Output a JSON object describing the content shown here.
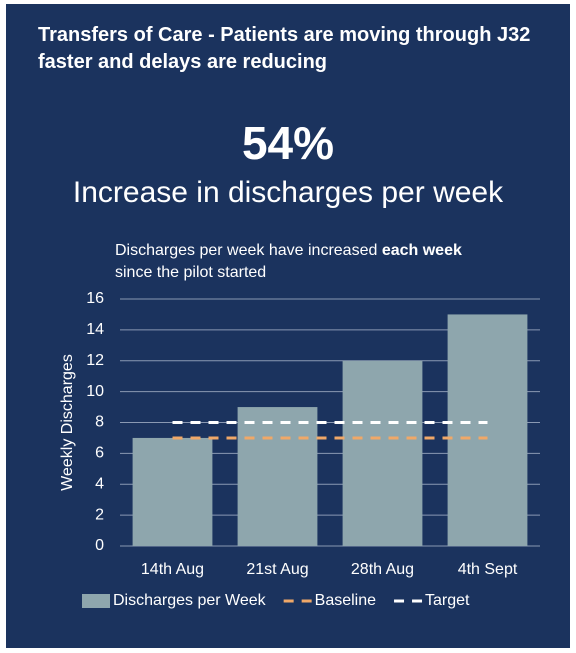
{
  "chart_data": {
    "type": "bar",
    "title": "Transfers of Care - Patients are moving through J32 faster and delays are reducing",
    "stat": "54%",
    "stat_label": "Increase in discharges per week",
    "subtitle": [
      "Discharges per week have increased ",
      "each week",
      " since the pilot started"
    ],
    "ylabel": "Weekly Discharges",
    "categories": [
      "14th Aug",
      "21st Aug",
      "28th Aug",
      "4th Sept"
    ],
    "series": [
      {
        "name": "Discharges per Week",
        "type": "bar",
        "color": "#8ea6ad",
        "values": [
          7,
          9,
          12,
          15
        ]
      },
      {
        "name": "Baseline",
        "type": "line",
        "dashed": true,
        "color": "#f0a868",
        "values": [
          7,
          7,
          7,
          7
        ]
      },
      {
        "name": "Target",
        "type": "line",
        "dashed": true,
        "color": "#ffffff",
        "values": [
          8,
          8,
          8,
          8
        ]
      }
    ],
    "ylim": [
      0,
      16
    ],
    "yticks": [
      0,
      2,
      4,
      6,
      8,
      10,
      12,
      14,
      16
    ],
    "grid": true,
    "legend": "bottom"
  }
}
